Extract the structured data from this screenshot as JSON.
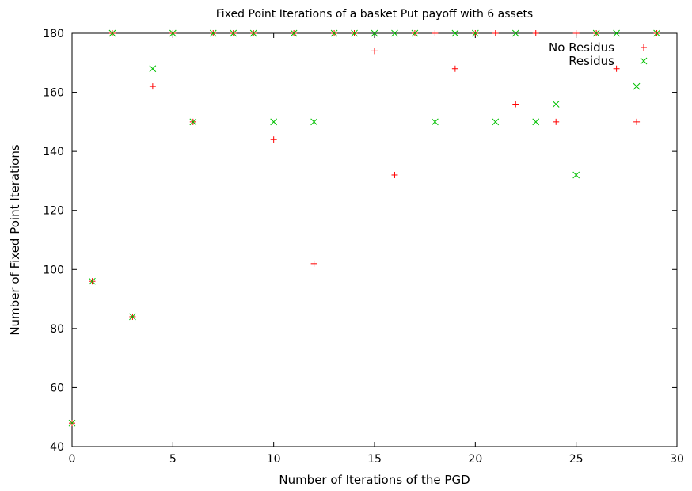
{
  "chart_data": {
    "type": "scatter",
    "title": "Fixed Point Iterations of a basket Put payoff with 6 assets",
    "xlabel": "Number of Iterations of the PGD",
    "ylabel": "Number of Fixed Point Iterations",
    "xlim": [
      0,
      30
    ],
    "ylim": [
      40,
      180
    ],
    "xticks": [
      0,
      5,
      10,
      15,
      20,
      25,
      30
    ],
    "yticks": [
      40,
      60,
      80,
      100,
      120,
      140,
      160,
      180
    ],
    "grid": false,
    "legend_position": "top-right",
    "series": [
      {
        "name": "No Residus",
        "marker": "plus",
        "color": "#ff0000",
        "points": [
          [
            0,
            48
          ],
          [
            1,
            96
          ],
          [
            2,
            180
          ],
          [
            3,
            84
          ],
          [
            4,
            162
          ],
          [
            5,
            180
          ],
          [
            6,
            150
          ],
          [
            7,
            180
          ],
          [
            8,
            180
          ],
          [
            9,
            180
          ],
          [
            10,
            144
          ],
          [
            11,
            180
          ],
          [
            12,
            102
          ],
          [
            13,
            180
          ],
          [
            14,
            180
          ],
          [
            15,
            174
          ],
          [
            16,
            132
          ],
          [
            17,
            180
          ],
          [
            18,
            180
          ],
          [
            19,
            168
          ],
          [
            20,
            180
          ],
          [
            21,
            180
          ],
          [
            22,
            156
          ],
          [
            23,
            180
          ],
          [
            24,
            150
          ],
          [
            25,
            180
          ],
          [
            26,
            180
          ],
          [
            27,
            168
          ],
          [
            28,
            150
          ],
          [
            29,
            180
          ]
        ]
      },
      {
        "name": "Residus",
        "marker": "cross",
        "color": "#00c000",
        "points": [
          [
            0,
            48
          ],
          [
            1,
            96
          ],
          [
            2,
            180
          ],
          [
            3,
            84
          ],
          [
            4,
            168
          ],
          [
            5,
            180
          ],
          [
            6,
            150
          ],
          [
            7,
            180
          ],
          [
            8,
            180
          ],
          [
            9,
            180
          ],
          [
            10,
            150
          ],
          [
            11,
            180
          ],
          [
            12,
            150
          ],
          [
            13,
            180
          ],
          [
            14,
            180
          ],
          [
            15,
            180
          ],
          [
            16,
            180
          ],
          [
            17,
            180
          ],
          [
            18,
            150
          ],
          [
            19,
            180
          ],
          [
            20,
            180
          ],
          [
            21,
            150
          ],
          [
            22,
            180
          ],
          [
            23,
            150
          ],
          [
            24,
            156
          ],
          [
            25,
            132
          ],
          [
            26,
            180
          ],
          [
            27,
            180
          ],
          [
            28,
            162
          ],
          [
            29,
            180
          ]
        ]
      }
    ]
  }
}
